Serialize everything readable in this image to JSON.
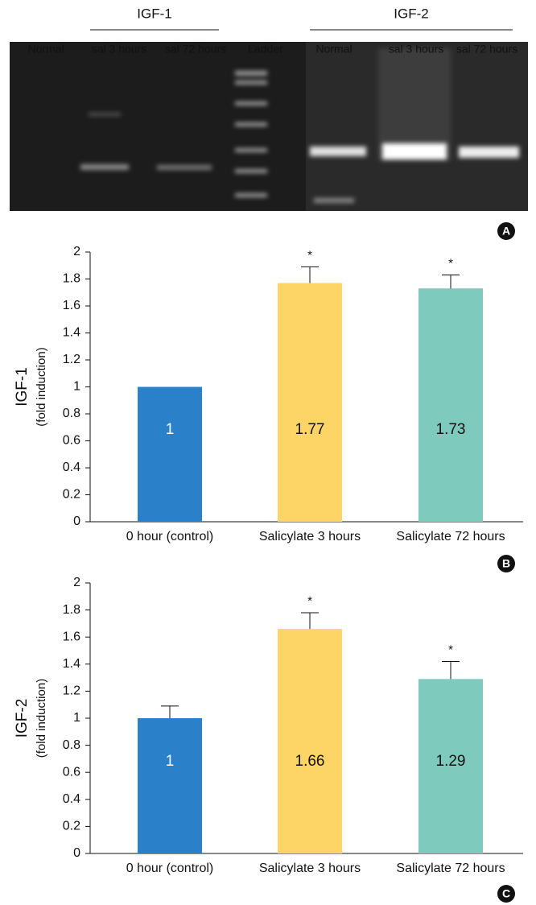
{
  "gel": {
    "groups": [
      "IGF-1",
      "IGF-2"
    ],
    "lanes": [
      "Normal",
      "sal 3 hours",
      "sal 72 hours",
      "Ladder",
      "Normal",
      "sal 3 hours",
      "sal 72 hours"
    ],
    "panel_label": "A"
  },
  "chart_data": [
    {
      "type": "bar",
      "panel_label": "B",
      "ylabel": "IGF-1",
      "ylabel_sub": "(fold induction)",
      "categories": [
        "0 hour (control)",
        "Salicylate 3 hours",
        "Salicylate 72 hours"
      ],
      "values": [
        1,
        1.77,
        1.73
      ],
      "errors": [
        null,
        0.12,
        0.1
      ],
      "annotations": [
        null,
        "*",
        "*"
      ],
      "colors": [
        "#2a80c9",
        "#fdd466",
        "#7ecbbd"
      ],
      "label_colors": [
        "#ffffff",
        "#111111",
        "#111111"
      ],
      "ylim": [
        0,
        2
      ],
      "yticks": [
        0,
        0.2,
        0.4,
        0.6,
        0.8,
        1,
        1.2,
        1.4,
        1.6,
        1.8,
        2
      ]
    },
    {
      "type": "bar",
      "panel_label": "C",
      "ylabel": "IGF-2",
      "ylabel_sub": "(fold induction)",
      "categories": [
        "0 hour (control)",
        "Salicylate 3 hours",
        "Salicylate 72 hours"
      ],
      "values": [
        1,
        1.66,
        1.29
      ],
      "errors": [
        0.09,
        0.12,
        0.13
      ],
      "annotations": [
        null,
        "*",
        "*"
      ],
      "colors": [
        "#2a80c9",
        "#fdd466",
        "#7ecbbd"
      ],
      "label_colors": [
        "#ffffff",
        "#111111",
        "#111111"
      ],
      "ylim": [
        0,
        2
      ],
      "yticks": [
        0,
        0.2,
        0.4,
        0.6,
        0.8,
        1,
        1.2,
        1.4,
        1.6,
        1.8,
        2
      ]
    }
  ]
}
